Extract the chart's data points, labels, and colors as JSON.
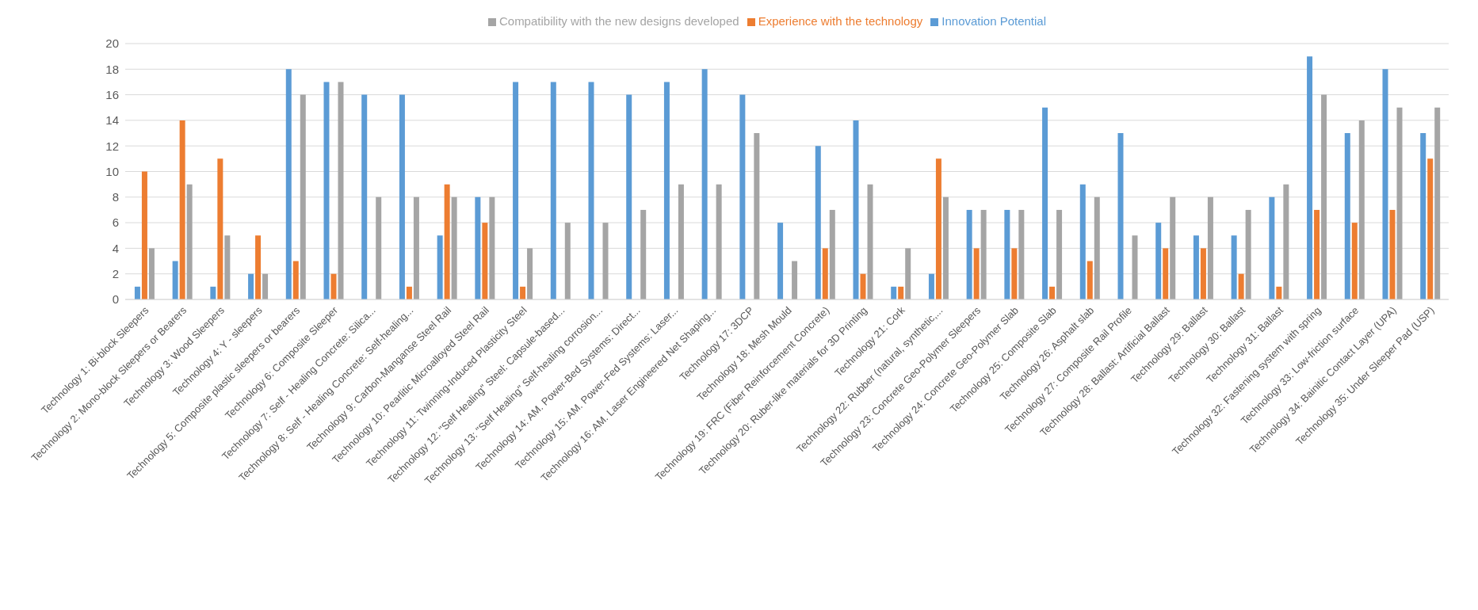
{
  "chart_data": {
    "type": "bar",
    "categories": [
      "Technology 1: Bi-block Sleepers",
      "Technology 2: Mono-block Sleepers or Bearers",
      "Technology 3: Wood Sleepers",
      "Technology 4: Y - sleepers",
      "Technology 5: Composite plastic sleepers or bearers",
      "Technology 6: Composite Sleeper",
      "Technology 7: Self - Healing Concrete: Silica...",
      "Technology 8: Self - Healing Concrete: Self-healing...",
      "Technology 9: Carbon-Manganse Steel Rail",
      "Technology 10: Pearlitic Microalloyed Steel Rail",
      "Technology 11: Twinning-Induced Plasticity Steel",
      "Technology 12: \"Self Healing\" Steel: Capsule-based...",
      "Technology 13: \"Self Healing\" Self-healing corrosion...",
      "Technology 14: AM. Power-Bed Systems: Direct...",
      "Technology 15: AM. Power-Fed Systems: Laser...",
      "Technology 16: AM. Laser Engineered Net Shaping...",
      "Technology 17: 3DCP",
      "Technology 18: Mesh Mould",
      "Technology 19: FRC (Fiber Reinforcement Concrete)",
      "Technology 20: Ruber-like materials for 3D Printing",
      "Technology 21: Cork",
      "Technology 22: Rubber (natural, synthetic,...",
      "Technology 23: Concrete Geo-Polymer Sleepers",
      "Technology 24: Concrete Geo-Polymer Slab",
      "Technology 25: Composite Slab",
      "Technology 26: Asphalt slab",
      "Technology 27: Composite Rail Profile",
      "Technology 28: Ballast: Artificial Ballast",
      "Technology 29: Ballast",
      "Technology 30: Ballast",
      "Technology 31: Ballast",
      "Technology 32: Fastening system with spring",
      "Technology 33: Low-friction surface",
      "Technology 34: Bainitic Contact Layer (UPA)",
      "Technology 35: Under Sleeper Pad (USP)"
    ],
    "series": [
      {
        "name": "Innovation Potential",
        "color": "#5b9bd5",
        "values": [
          1,
          3,
          1,
          2,
          18,
          17,
          16,
          16,
          5,
          8,
          17,
          17,
          17,
          16,
          17,
          18,
          16,
          6,
          12,
          14,
          1,
          2,
          7,
          7,
          15,
          9,
          13,
          6,
          5,
          5,
          8,
          19,
          13,
          18,
          13
        ]
      },
      {
        "name": "Experience with the technology",
        "color": "#ed7d31",
        "values": [
          10,
          14,
          11,
          5,
          3,
          2,
          0,
          1,
          9,
          6,
          1,
          0,
          0,
          0,
          0,
          0,
          0,
          0,
          4,
          2,
          1,
          11,
          4,
          4,
          1,
          3,
          0,
          4,
          4,
          2,
          1,
          7,
          6,
          7,
          11
        ]
      },
      {
        "name": "Compatibility with the new designs developed",
        "color": "#a5a5a5",
        "values": [
          4,
          9,
          5,
          2,
          16,
          17,
          8,
          8,
          8,
          8,
          4,
          6,
          6,
          7,
          9,
          9,
          13,
          3,
          7,
          9,
          4,
          8,
          7,
          7,
          7,
          8,
          5,
          8,
          8,
          7,
          9,
          16,
          14,
          15,
          15
        ]
      }
    ],
    "ylim": [
      0,
      20
    ],
    "yticks": [
      0,
      2,
      4,
      6,
      8,
      10,
      12,
      14,
      16,
      18,
      20
    ],
    "grid": "y",
    "legend": "top"
  }
}
